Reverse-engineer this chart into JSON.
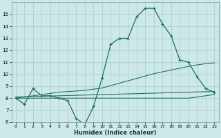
{
  "xlabel": "Humidex (Indice chaleur)",
  "bg_color": "#cce8e8",
  "grid_color": "#b0cece",
  "line_color": "#1a6e64",
  "x_data": [
    0,
    1,
    2,
    3,
    4,
    5,
    6,
    7,
    8,
    9,
    10,
    11,
    12,
    13,
    14,
    15,
    16,
    17,
    18,
    19,
    20,
    21,
    22,
    23
  ],
  "y_main": [
    8.0,
    7.5,
    8.8,
    8.2,
    8.2,
    8.0,
    7.8,
    6.3,
    5.8,
    7.3,
    9.7,
    12.5,
    13.0,
    13.0,
    14.8,
    15.5,
    15.5,
    14.2,
    13.2,
    11.2,
    11.0,
    9.8,
    8.8,
    8.5
  ],
  "y_upper": [
    8.0,
    8.1,
    8.2,
    8.3,
    8.4,
    8.5,
    8.55,
    8.6,
    8.65,
    8.75,
    8.85,
    9.05,
    9.25,
    9.45,
    9.65,
    9.85,
    10.05,
    10.2,
    10.35,
    10.5,
    10.65,
    10.78,
    10.88,
    10.95
  ],
  "y_mid": [
    8.1,
    8.12,
    8.14,
    8.16,
    8.18,
    8.2,
    8.22,
    8.24,
    8.26,
    8.28,
    8.3,
    8.32,
    8.34,
    8.36,
    8.38,
    8.4,
    8.42,
    8.44,
    8.46,
    8.48,
    8.5,
    8.52,
    8.54,
    8.56
  ],
  "y_lower": [
    8.0,
    8.0,
    8.0,
    8.0,
    8.0,
    8.0,
    8.0,
    8.0,
    8.0,
    8.0,
    8.0,
    8.0,
    8.0,
    8.0,
    8.0,
    8.0,
    8.0,
    8.0,
    8.0,
    8.0,
    8.0,
    8.1,
    8.2,
    8.3
  ],
  "ylim": [
    6,
    16
  ],
  "yticks": [
    6,
    7,
    8,
    9,
    10,
    11,
    12,
    13,
    14,
    15
  ],
  "xticks": [
    0,
    1,
    2,
    3,
    4,
    5,
    6,
    7,
    8,
    9,
    10,
    11,
    12,
    13,
    14,
    15,
    16,
    17,
    18,
    19,
    20,
    21,
    22,
    23
  ],
  "marker": "+",
  "markersize": 3.5,
  "linewidth": 0.9
}
